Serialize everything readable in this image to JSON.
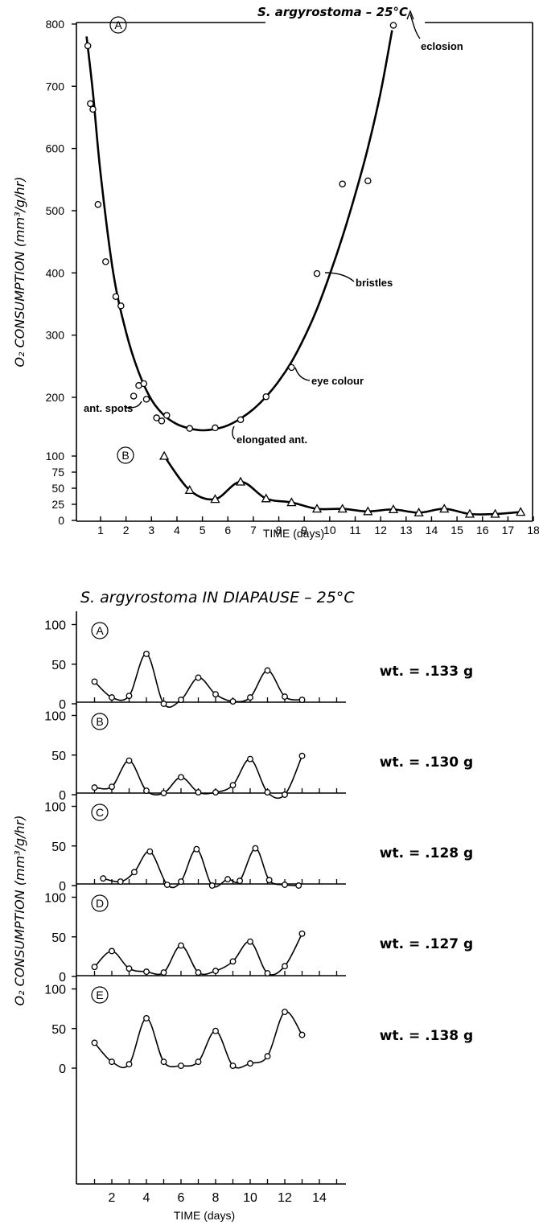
{
  "chart_data": [
    {
      "type": "scatter",
      "title": "S. argyrostoma – 25°C",
      "xlabel": "TIME (days)",
      "ylabel": "O₂ CONSUMPTION (mm³/g/hr)",
      "xlim": [
        0,
        18
      ],
      "x_ticks": [
        1,
        2,
        3,
        4,
        5,
        6,
        7,
        8,
        9,
        10,
        11,
        12,
        13,
        14,
        15,
        16,
        17,
        18
      ],
      "y_ticks_upper": [
        200,
        300,
        400,
        500,
        600,
        700,
        800
      ],
      "y_ticks_lower": [
        0,
        25,
        50,
        75,
        100
      ],
      "series": [
        {
          "name": "A",
          "marker": "circle",
          "x": [
            0.5,
            0.6,
            0.7,
            0.9,
            1.2,
            1.6,
            1.8,
            2.3,
            2.5,
            2.7,
            2.8,
            3.2,
            3.4,
            3.6,
            4.5,
            5.5,
            6.5,
            7.5,
            8.5,
            9.5,
            10.5,
            11.5,
            12.5
          ],
          "y": [
            765,
            672,
            663,
            510,
            418,
            362,
            347,
            202,
            219,
            222,
            197,
            167,
            162,
            171,
            150,
            151,
            164,
            201,
            248,
            399,
            543,
            548,
            798
          ],
          "fit_x": [
            0.45,
            0.7,
            1.0,
            1.5,
            2.0,
            2.5,
            3.0,
            3.5,
            4.0,
            4.5,
            5.0,
            5.5,
            6.0,
            6.5,
            7.0,
            7.5,
            8.0,
            8.5,
            9.0,
            9.5,
            10.0,
            10.5,
            11.0,
            11.5,
            12.0,
            12.45
          ],
          "fit_y": [
            780,
            690,
            560,
            400,
            305,
            240,
            196,
            171,
            157,
            150,
            147,
            149,
            155,
            166,
            181,
            201,
            226,
            257,
            296,
            342,
            397,
            458,
            526,
            601,
            690,
            790
          ]
        },
        {
          "name": "B",
          "marker": "triangle",
          "x": [
            3.5,
            4.5,
            5.5,
            6.5,
            7.5,
            8.5,
            9.5,
            10.5,
            11.5,
            12.5,
            13.5,
            14.5,
            15.5,
            16.5,
            17.5
          ],
          "y": [
            100,
            47,
            33,
            60,
            34,
            28,
            18,
            18,
            14,
            17,
            12,
            18,
            10,
            10,
            13
          ]
        }
      ],
      "annotations": [
        "eclosion",
        "bristles",
        "eye colour",
        "ant. spots",
        "elongated ant."
      ],
      "panel_labels": [
        "A",
        "B"
      ]
    },
    {
      "type": "line",
      "title": "S. argyrostoma IN DIAPAUSE – 25°C",
      "xlabel": "TIME (days)",
      "ylabel": "O₂ CONSUMPTION (mm³/g/hr)",
      "xlim": [
        0,
        16
      ],
      "ylim": [
        0,
        100
      ],
      "x_ticks": [
        2,
        4,
        6,
        8,
        10,
        12,
        14
      ],
      "y_ticks": [
        0,
        50,
        100
      ],
      "series": [
        {
          "name": "A",
          "weight": "wt. = .133 g",
          "x": [
            1,
            2,
            3,
            4,
            5,
            6,
            7,
            8,
            9,
            10,
            11,
            12,
            13
          ],
          "y": [
            28,
            8,
            10,
            63,
            0,
            5,
            33,
            12,
            3,
            8,
            42,
            9,
            5
          ]
        },
        {
          "name": "B",
          "weight": "wt. = .130 g",
          "x": [
            1,
            2,
            3,
            4,
            5,
            6,
            7,
            8,
            9,
            10,
            11,
            12,
            13
          ],
          "y": [
            9,
            10,
            43,
            5,
            2,
            22,
            3,
            3,
            12,
            45,
            3,
            0,
            49
          ]
        },
        {
          "name": "C",
          "weight": "wt. = .128 g",
          "x": [
            1.5,
            2.5,
            3.3,
            4.2,
            5.2,
            6.0,
            6.9,
            7.8,
            8.7,
            9.4,
            10.3,
            11.1,
            12.0,
            12.8
          ],
          "y": [
            9,
            5,
            17,
            43,
            1,
            5,
            46,
            0,
            8,
            6,
            47,
            7,
            1,
            0
          ]
        },
        {
          "name": "D",
          "weight": "wt. = .127 g",
          "x": [
            1,
            2,
            3,
            4,
            5,
            6,
            7,
            8,
            9,
            10,
            11,
            12,
            13
          ],
          "y": [
            12,
            32,
            10,
            6,
            5,
            39,
            5,
            7,
            19,
            44,
            4,
            13,
            54
          ]
        },
        {
          "name": "E",
          "weight": "wt. = .138 g",
          "x": [
            1,
            2,
            3,
            4,
            5,
            6,
            7,
            8,
            9,
            10,
            11,
            12,
            13
          ],
          "y": [
            32,
            8,
            5,
            63,
            8,
            3,
            8,
            47,
            3,
            6,
            15,
            71,
            42
          ]
        }
      ]
    }
  ]
}
